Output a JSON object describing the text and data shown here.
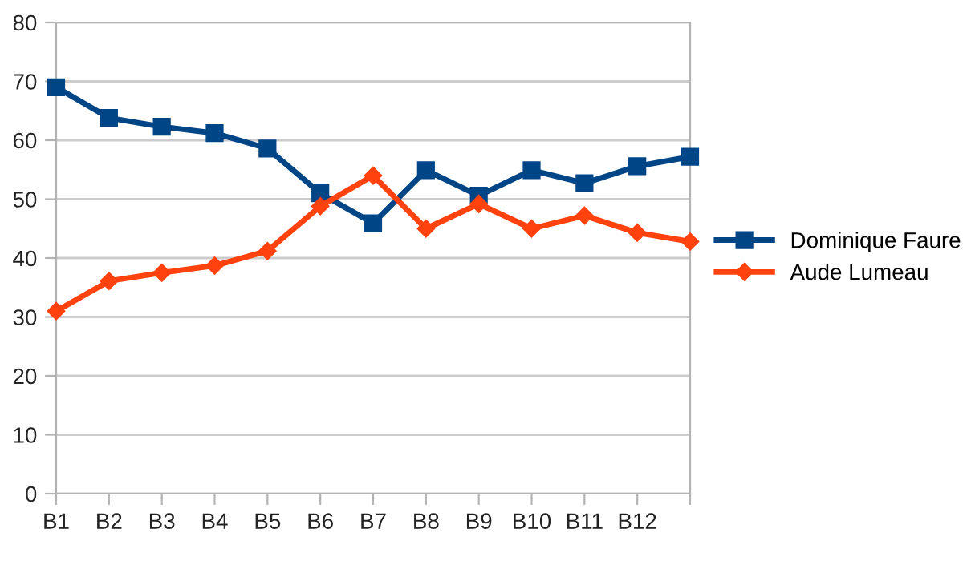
{
  "chart_data": {
    "type": "line",
    "categories": [
      "B1",
      "B2",
      "B3",
      "B4",
      "B5",
      "B6",
      "B7",
      "B8",
      "B9",
      "B10",
      "B11",
      "B12",
      null
    ],
    "series": [
      {
        "name": "Dominique Faure",
        "color": "#004586",
        "marker": "square",
        "values": [
          69,
          63.8,
          62.3,
          61.2,
          58.6,
          51,
          45.9,
          54.9,
          50.6,
          54.9,
          52.7,
          55.6,
          57.2
        ]
      },
      {
        "name": "Aude Lumeau",
        "color": "#ff420e",
        "marker": "diamond",
        "values": [
          31,
          36.1,
          37.5,
          38.7,
          41.2,
          48.8,
          54,
          45,
          49.2,
          45,
          47.2,
          44.3,
          42.8
        ]
      }
    ],
    "ylim": [
      0,
      80
    ],
    "yticks": [
      0,
      10,
      20,
      30,
      40,
      50,
      60,
      70,
      80
    ],
    "grid": "y",
    "legend": "right",
    "line_style": "solid"
  }
}
